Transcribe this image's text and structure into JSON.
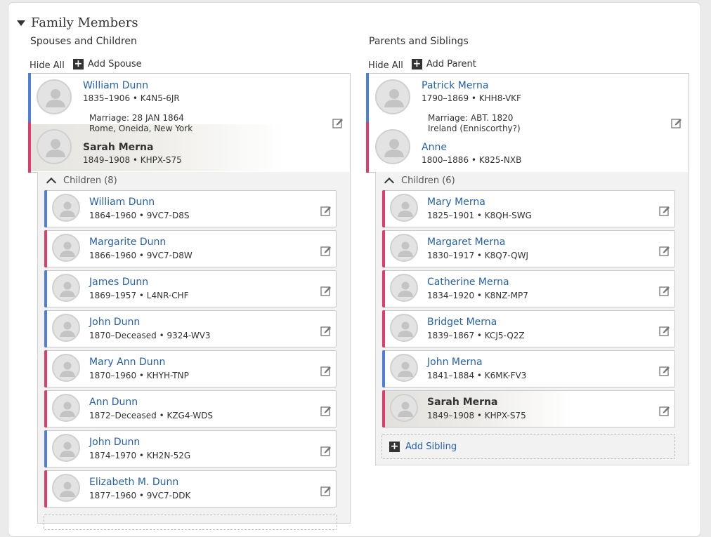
{
  "section": {
    "title": "Family Members"
  },
  "left": {
    "title": "Spouses and Children",
    "hide_all": "Hide All",
    "add_label": "Add Spouse",
    "husband": {
      "name": "William Dunn",
      "life": "1835–1906 • K4N5-6JR"
    },
    "marriage": {
      "line1": "Marriage: 28 JAN 1864",
      "line2": "Rome, Oneida, New York"
    },
    "wife": {
      "name": "Sarah Merna",
      "life": "1849–1908 • KHPX-S75"
    },
    "children_label": "Children (8)",
    "children": [
      {
        "name": "William Dunn",
        "life": "1864–1960 • 9VC7-D8S",
        "gender": "male"
      },
      {
        "name": "Margarite Dunn",
        "life": "1866–1960 • 9VC7-D8W",
        "gender": "female"
      },
      {
        "name": "James Dunn",
        "life": "1869–1957 • L4NR-CHF",
        "gender": "male"
      },
      {
        "name": "John Dunn",
        "life": "1870–Deceased • 9324-WV3",
        "gender": "male"
      },
      {
        "name": "Mary Ann Dunn",
        "life": "1870–1960 • KHYH-TNP",
        "gender": "female"
      },
      {
        "name": "Ann Dunn",
        "life": "1872–Deceased • KZG4-WDS",
        "gender": "female"
      },
      {
        "name": "John Dunn",
        "life": "1874–1970 • KH2N-52G",
        "gender": "male"
      },
      {
        "name": "Elizabeth M. Dunn",
        "life": "1877–1960 • 9VC7-DDK",
        "gender": "female"
      }
    ]
  },
  "right": {
    "title": "Parents and Siblings",
    "hide_all": "Hide All",
    "add_label": "Add Parent",
    "father": {
      "name": "Patrick Merna",
      "life": "1790–1869 • KHH8-VKF"
    },
    "marriage": {
      "line1": "Marriage: ABT. 1820",
      "line2": "Ireland (Enniscorthy?)"
    },
    "mother": {
      "name": "Anne",
      "life": "1800–1886 • K825-NXB"
    },
    "children_label": "Children (6)",
    "children": [
      {
        "name": "Mary Merna",
        "life": "1825–1901 • K8QH-SWG",
        "gender": "female"
      },
      {
        "name": "Margaret Merna",
        "life": "1830–1917 • K8Q7-QWJ",
        "gender": "female"
      },
      {
        "name": "Catherine Merna",
        "life": "1834–1920 • K8NZ-MP7",
        "gender": "female"
      },
      {
        "name": "Bridget Merna",
        "life": "1839–1867 • KCJ5-Q2Z",
        "gender": "female"
      },
      {
        "name": "John Merna",
        "life": "1841–1884 • K6MK-FV3",
        "gender": "male"
      },
      {
        "name": "Sarah Merna",
        "life": "1849–1908 • KHPX-S75",
        "gender": "female",
        "selected": true
      }
    ],
    "add_sibling": "Add Sibling"
  },
  "colors": {
    "male": "#4d7fd8",
    "female": "#dd3c6f",
    "link": "#2561ae"
  },
  "icons": {
    "avatar": "person-silhouette-icon",
    "edit": "edit-pencil-icon",
    "add": "plus-box-icon",
    "collapse": "triangle-down-icon",
    "chevron": "chevron-up-icon"
  }
}
